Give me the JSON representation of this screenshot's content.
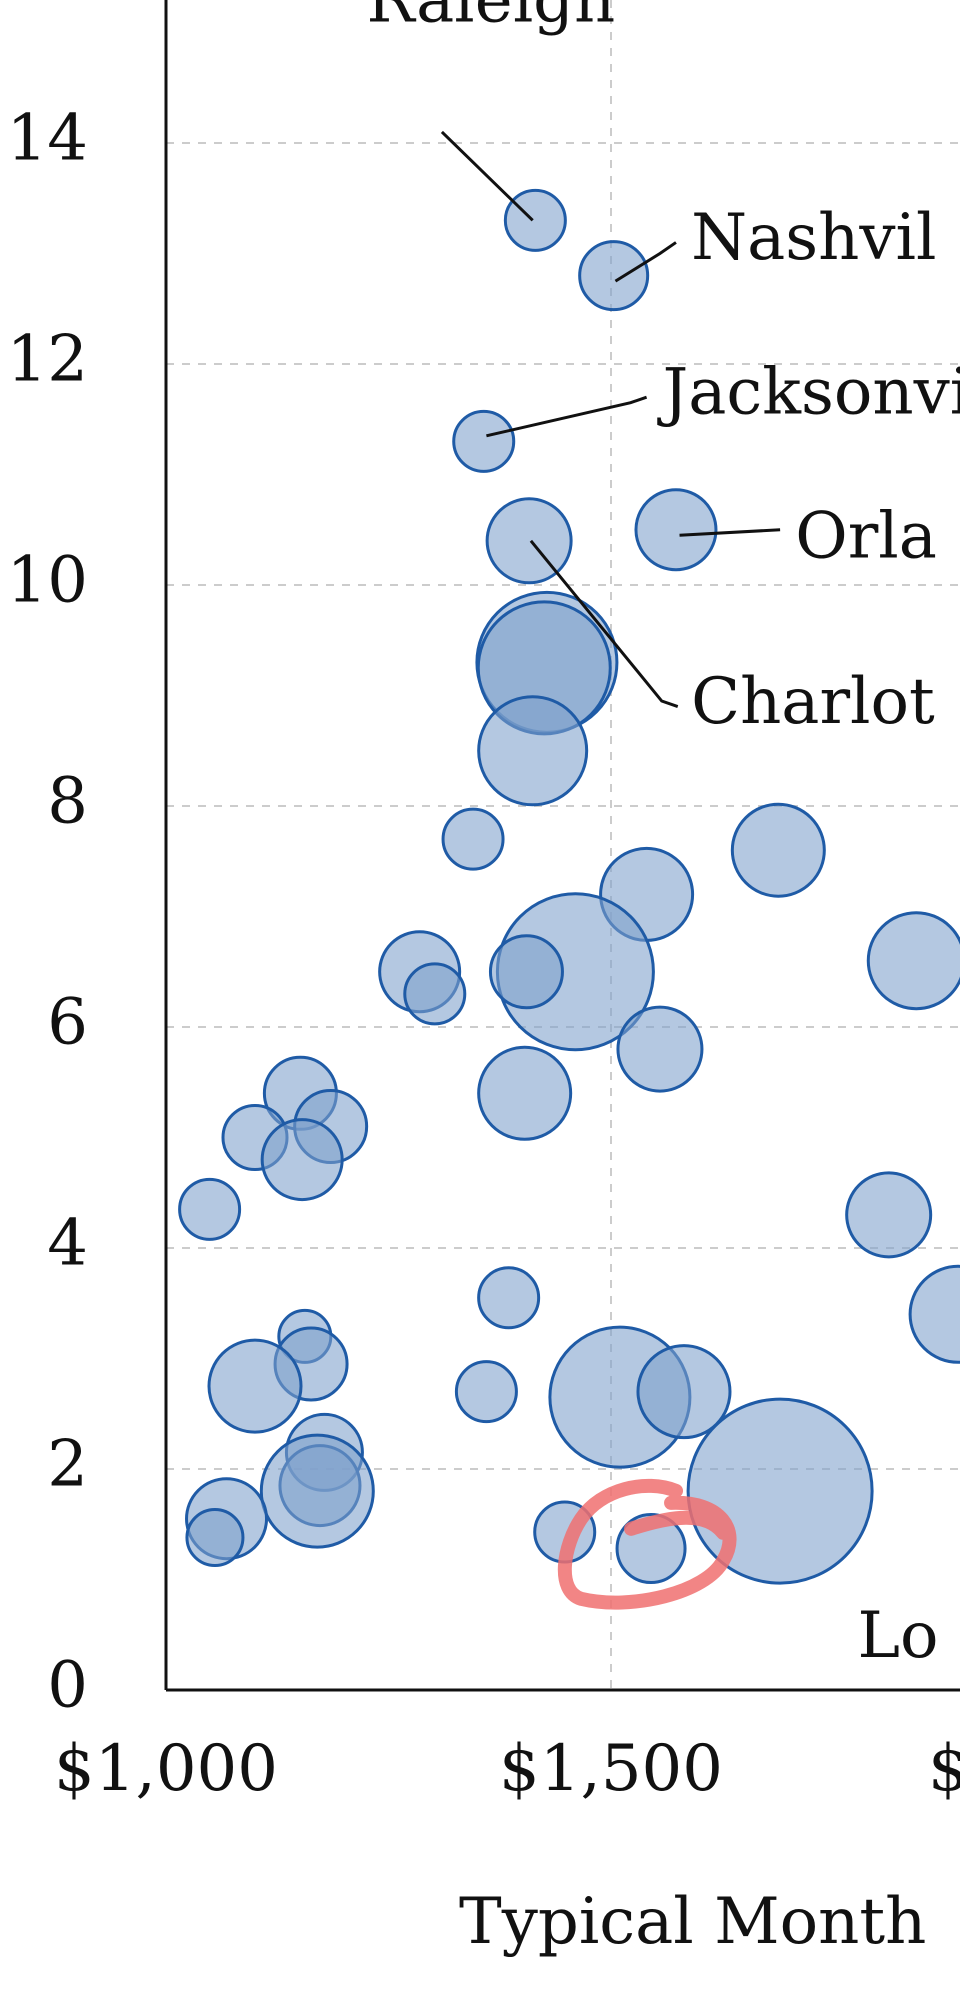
{
  "chart_data": {
    "type": "scatter",
    "title": "",
    "xlabel": "Typical Month",
    "ylabel": "",
    "xlim": [
      1000,
      1880
    ],
    "ylim": [
      0,
      15.3
    ],
    "x_ticks": [
      {
        "value": 1000,
        "label": "$1,000"
      },
      {
        "value": 1500,
        "label": "$1,500"
      },
      {
        "value": 2000,
        "label": "$"
      }
    ],
    "y_ticks": [
      {
        "value": 0,
        "label": "0"
      },
      {
        "value": 2,
        "label": "2"
      },
      {
        "value": 4,
        "label": "4"
      },
      {
        "value": 6,
        "label": "6"
      },
      {
        "value": 8,
        "label": "8"
      },
      {
        "value": 10,
        "label": "10"
      },
      {
        "value": 12,
        "label": "12"
      },
      {
        "value": 14,
        "label": "14"
      }
    ],
    "grid": true,
    "colors": {
      "fill": "#7ea1cb",
      "stroke": "#1f5ba6",
      "grid": "#cccccc",
      "highlight": "#f07070"
    },
    "bubble_size_note": "relative bubble size (radius) in arbitrary units",
    "points": [
      {
        "x": 1415,
        "y": 13.3,
        "size": 30
      },
      {
        "x": 1503,
        "y": 12.8,
        "size": 34
      },
      {
        "x": 1357,
        "y": 11.3,
        "size": 30
      },
      {
        "x": 1573,
        "y": 10.5,
        "size": 40
      },
      {
        "x": 1408,
        "y": 10.4,
        "size": 42
      },
      {
        "x": 1428,
        "y": 9.3,
        "size": 70
      },
      {
        "x": 1425,
        "y": 9.25,
        "size": 66
      },
      {
        "x": 1412,
        "y": 8.5,
        "size": 54
      },
      {
        "x": 1345,
        "y": 7.7,
        "size": 30
      },
      {
        "x": 1688,
        "y": 7.6,
        "size": 46
      },
      {
        "x": 1843,
        "y": 6.6,
        "size": 48
      },
      {
        "x": 1540,
        "y": 7.2,
        "size": 46
      },
      {
        "x": 1460,
        "y": 6.5,
        "size": 78
      },
      {
        "x": 1405,
        "y": 6.5,
        "size": 36
      },
      {
        "x": 1285,
        "y": 6.5,
        "size": 40
      },
      {
        "x": 1302,
        "y": 6.3,
        "size": 30
      },
      {
        "x": 1555,
        "y": 5.8,
        "size": 42
      },
      {
        "x": 1403,
        "y": 5.4,
        "size": 46
      },
      {
        "x": 1151,
        "y": 5.4,
        "size": 36
      },
      {
        "x": 1185,
        "y": 5.1,
        "size": 36
      },
      {
        "x": 1100,
        "y": 5.0,
        "size": 32
      },
      {
        "x": 1153,
        "y": 4.8,
        "size": 40
      },
      {
        "x": 1049,
        "y": 4.35,
        "size": 30
      },
      {
        "x": 1812,
        "y": 4.3,
        "size": 42
      },
      {
        "x": 1890,
        "y": 3.4,
        "size": 48
      },
      {
        "x": 1385,
        "y": 3.55,
        "size": 30
      },
      {
        "x": 1360,
        "y": 2.7,
        "size": 30
      },
      {
        "x": 1156,
        "y": 3.2,
        "size": 26
      },
      {
        "x": 1163,
        "y": 2.95,
        "size": 36
      },
      {
        "x": 1100,
        "y": 2.75,
        "size": 46
      },
      {
        "x": 1510,
        "y": 2.65,
        "size": 70
      },
      {
        "x": 1582,
        "y": 2.7,
        "size": 46
      },
      {
        "x": 1690,
        "y": 1.8,
        "size": 92
      },
      {
        "x": 1178,
        "y": 2.15,
        "size": 38
      },
      {
        "x": 1173,
        "y": 1.85,
        "size": 40
      },
      {
        "x": 1170,
        "y": 1.8,
        "size": 56
      },
      {
        "x": 1068,
        "y": 1.55,
        "size": 40
      },
      {
        "x": 1055,
        "y": 1.38,
        "size": 28
      },
      {
        "x": 1448,
        "y": 1.43,
        "size": 30
      },
      {
        "x": 1545,
        "y": 1.28,
        "size": 34
      }
    ],
    "annotations": [
      {
        "label": "Raleigh",
        "label_x": 1365,
        "label_y": 15.1,
        "anchor": "middle",
        "baseline": "alpha",
        "line": [
          [
            1310,
            14.1
          ],
          [
            1412,
            13.3
          ]
        ]
      },
      {
        "label": "Nashvil",
        "label_x": 1590,
        "label_y": 13.1,
        "anchor": "start",
        "baseline": "middle",
        "line": [
          [
            1573,
            13.1
          ],
          [
            1555,
            13.0
          ],
          [
            1505,
            12.75
          ]
        ]
      },
      {
        "label": "Jacksonvil",
        "label_x": 1558,
        "label_y": 11.7,
        "anchor": "start",
        "baseline": "middle",
        "line": [
          [
            1540,
            11.7
          ],
          [
            1522,
            11.65
          ],
          [
            1360,
            11.35
          ]
        ]
      },
      {
        "label": "Orla",
        "label_x": 1707,
        "label_y": 10.4,
        "anchor": "start",
        "baseline": "middle",
        "line": [
          [
            1690,
            10.5
          ],
          [
            1577,
            10.45
          ]
        ]
      },
      {
        "label": "Charlot",
        "label_x": 1590,
        "label_y": 8.9,
        "anchor": "start",
        "baseline": "middle",
        "line": [
          [
            1575,
            8.9
          ],
          [
            1557,
            8.95
          ],
          [
            1410,
            10.4
          ]
        ]
      },
      {
        "label": "Lo",
        "label_x": 1777,
        "label_y": 0.45,
        "anchor": "start",
        "baseline": "middle",
        "line": []
      }
    ],
    "highlight": {
      "x": 1545,
      "y": 1.35,
      "shape": "hand-drawn circle"
    }
  }
}
